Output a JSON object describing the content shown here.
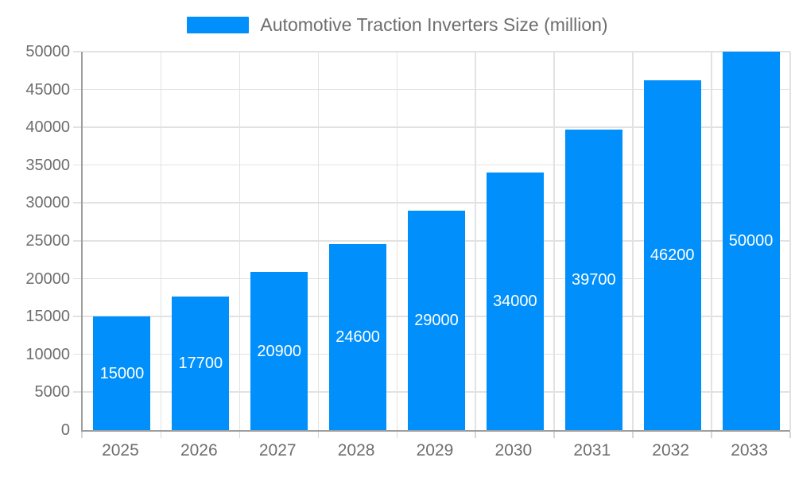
{
  "legend": {
    "label": "Automotive Traction Inverters Size (million)"
  },
  "chart_data": {
    "type": "bar",
    "title": "Automotive Traction Inverters Size (million)",
    "series": [
      {
        "name": "Automotive Traction Inverters Size (million)",
        "values": [
          15000,
          17700,
          20900,
          24600,
          29000,
          34000,
          39700,
          46200,
          50000
        ]
      }
    ],
    "categories": [
      "2025",
      "2026",
      "2027",
      "2028",
      "2029",
      "2030",
      "2031",
      "2032",
      "2033"
    ],
    "xlabel": "",
    "ylabel": "",
    "ylim": [
      0,
      50000
    ],
    "ytick_step": 5000,
    "yticks": [
      0,
      5000,
      10000,
      15000,
      20000,
      25000,
      30000,
      35000,
      40000,
      45000,
      50000
    ],
    "grid": true,
    "legend_position": "top",
    "value_labels": "centered-inside-bars",
    "colors": {
      "bar": "#008FFB",
      "value_label": "#FFFFFF",
      "axis_label": "#6E6E6E",
      "legend_text": "#6E6E6E",
      "grid_line": "#E2E2E2",
      "axis_line": "#9E9E9E",
      "background": "#FFFFFF"
    }
  }
}
